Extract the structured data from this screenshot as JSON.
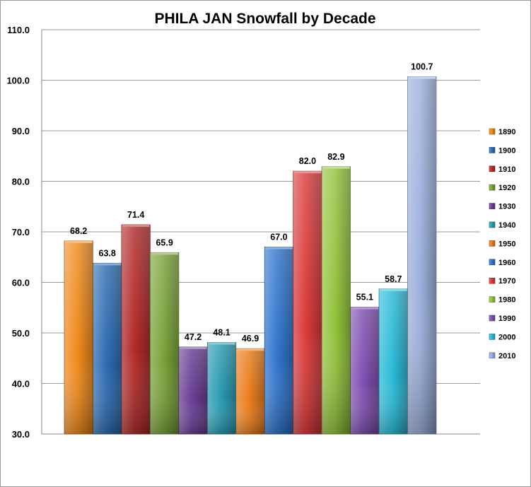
{
  "chart_data": {
    "type": "bar",
    "title": "PHILA JAN Snowfall by Decade",
    "xlabel": "",
    "ylabel": "",
    "ylim": [
      30,
      110
    ],
    "yticks": [
      "30.0",
      "40.0",
      "50.0",
      "60.0",
      "70.0",
      "80.0",
      "90.0",
      "100.0",
      "110.0"
    ],
    "grid": true,
    "legend_position": "right",
    "series": [
      {
        "name": "1890",
        "value": 68.2,
        "label": "68.2",
        "color": "#f08a1c"
      },
      {
        "name": "1900",
        "value": 63.8,
        "label": "63.8",
        "color": "#2e6db4"
      },
      {
        "name": "1910",
        "value": 71.4,
        "label": "71.4",
        "color": "#b22a2a"
      },
      {
        "name": "1920",
        "value": 65.9,
        "label": "65.9",
        "color": "#7aa33a"
      },
      {
        "name": "1930",
        "value": 47.2,
        "label": "47.2",
        "color": "#6a3f94"
      },
      {
        "name": "1940",
        "value": 48.1,
        "label": "48.1",
        "color": "#2a9bb3"
      },
      {
        "name": "1950",
        "value": 46.9,
        "label": "46.9",
        "color": "#ea7d1c"
      },
      {
        "name": "1960",
        "value": 67.0,
        "label": "67.0",
        "color": "#2f74cc"
      },
      {
        "name": "1970",
        "value": 82.0,
        "label": "82.0",
        "color": "#d93a3a"
      },
      {
        "name": "1980",
        "value": 82.9,
        "label": "82.9",
        "color": "#93c43c"
      },
      {
        "name": "1990",
        "value": 55.1,
        "label": "55.1",
        "color": "#7f4fb1"
      },
      {
        "name": "2000",
        "value": 58.7,
        "label": "58.7",
        "color": "#2bbbd8"
      },
      {
        "name": "2010",
        "value": 100.7,
        "label": "100.7",
        "color": "#9bb0dc"
      }
    ]
  }
}
